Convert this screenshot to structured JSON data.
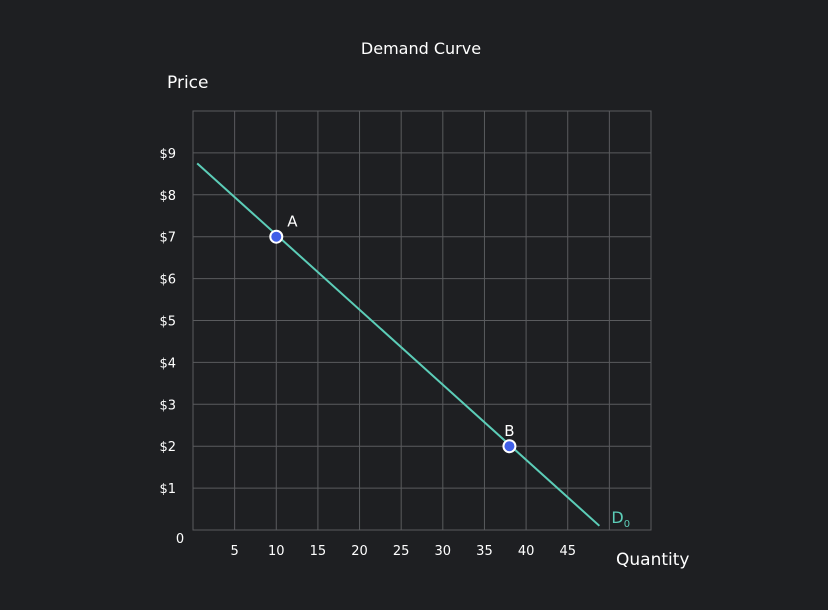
{
  "chart_data": {
    "type": "line",
    "title": "Demand Curve",
    "xlabel": "Quantity",
    "ylabel": "Price",
    "xlim": [
      0,
      55
    ],
    "ylim": [
      0,
      10
    ],
    "origin_label": "0",
    "x_ticks": [
      5,
      10,
      15,
      20,
      25,
      30,
      35,
      40,
      45
    ],
    "x_tick_labels": [
      "5",
      "10",
      "15",
      "20",
      "25",
      "30",
      "35",
      "40",
      "45"
    ],
    "y_ticks": [
      1,
      2,
      3,
      4,
      5,
      6,
      7,
      8,
      9
    ],
    "y_tick_labels": [
      "$1",
      "$2",
      "$3",
      "$4",
      "$5",
      "$6",
      "$7",
      "$8",
      "$9"
    ],
    "grid": true,
    "series": [
      {
        "label_main": "D",
        "label_sub": "0",
        "color": "#5ccdb8",
        "x": [
          0.5,
          48.8
        ],
        "y": [
          8.75,
          0.1
        ]
      }
    ],
    "points": [
      {
        "label": "A",
        "x": 10,
        "y": 7
      },
      {
        "label": "B",
        "x": 38,
        "y": 2
      }
    ]
  },
  "colors": {
    "background": "#1e1f22",
    "grid": "#5a5b5e",
    "curve": "#5ccdb8",
    "point_fill": "#3f5fe8",
    "point_stroke": "#ffffff",
    "text": "#ffffff"
  }
}
